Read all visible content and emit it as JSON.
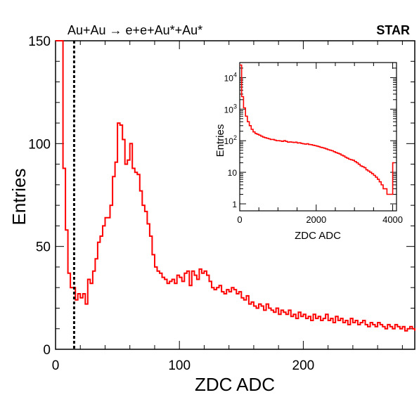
{
  "chart_data": [
    {
      "type": "histogram",
      "title": "Au+Au → e+e+Au*+Au*",
      "label": "STAR",
      "xlabel": "ZDC ADC",
      "ylabel": "Entries",
      "xlim": [
        0,
        290
      ],
      "ylim": [
        0,
        150
      ],
      "xticks": [
        0,
        100,
        200
      ],
      "yticks": [
        0,
        50,
        100,
        150
      ],
      "cut_line_x": 15,
      "line_color": "#ff0000",
      "cut_color": "#000000",
      "bin_width": 2,
      "bin_start": 0,
      "values": [
        150,
        150,
        150,
        88,
        58,
        37,
        30,
        30,
        24,
        27,
        25,
        27,
        22,
        34,
        32,
        38,
        44,
        52,
        55,
        60,
        64,
        64,
        70,
        84,
        91,
        110,
        109,
        102,
        90,
        92,
        100,
        88,
        86,
        85,
        77,
        70,
        67,
        61,
        55,
        46,
        40,
        38,
        37,
        35,
        34,
        32,
        33,
        34,
        32,
        36,
        35,
        33,
        37,
        38,
        31,
        38,
        36,
        34,
        39,
        37,
        38,
        36,
        33,
        30,
        29,
        30,
        31,
        28,
        27,
        29,
        28,
        30,
        29,
        27,
        28,
        25,
        24,
        26,
        22,
        23,
        21,
        20,
        22,
        21,
        19,
        22,
        20,
        19,
        18,
        20,
        17,
        19,
        18,
        17,
        19,
        16,
        17,
        15,
        18,
        16,
        17,
        15,
        16,
        14,
        17,
        15,
        16,
        14,
        15,
        17,
        14,
        15,
        13,
        16,
        14,
        15,
        13,
        14,
        12,
        15,
        13,
        14,
        12,
        13,
        14,
        12,
        11,
        13,
        12,
        11,
        13,
        12,
        11,
        10,
        12,
        11,
        10,
        12,
        11,
        10,
        11,
        9,
        10,
        11,
        10,
        9
      ]
    },
    {
      "type": "histogram",
      "inset": true,
      "xlabel": "ZDC ADC",
      "ylabel": "Entries",
      "xlim": [
        0,
        4100
      ],
      "ylim": [
        0.6,
        30000
      ],
      "log_y": true,
      "xticks": [
        0,
        2000,
        4000
      ],
      "ytick_labels": [
        "1",
        "10",
        "10^2",
        "10^3",
        "10^4"
      ],
      "line_color": "#ff0000",
      "bin_width": 50,
      "bin_start": 0,
      "values": [
        25000,
        2500,
        1100,
        600,
        400,
        300,
        230,
        190,
        170,
        160,
        150,
        140,
        130,
        125,
        120,
        115,
        110,
        110,
        105,
        100,
        100,
        98,
        95,
        100,
        95,
        90,
        92,
        90,
        88,
        90,
        85,
        86,
        82,
        80,
        78,
        80,
        76,
        75,
        72,
        70,
        68,
        65,
        62,
        60,
        58,
        55,
        52,
        50,
        48,
        45,
        42,
        40,
        38,
        35,
        33,
        30,
        28,
        26,
        25,
        24,
        22,
        20,
        18,
        16,
        15,
        14,
        12,
        11,
        10,
        9,
        8,
        7,
        6,
        5,
        4,
        3,
        3,
        2,
        2,
        2,
        20
      ]
    }
  ]
}
